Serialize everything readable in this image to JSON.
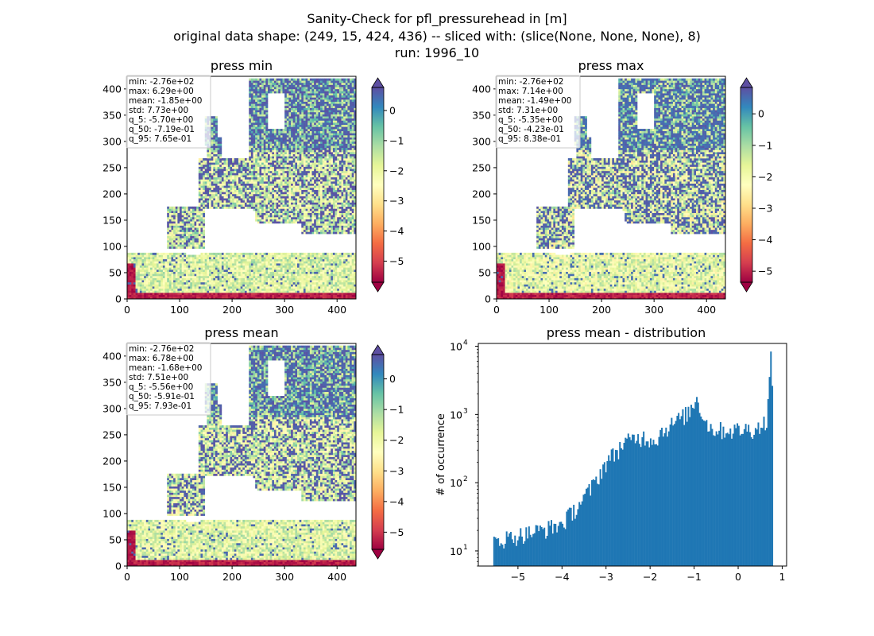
{
  "figure": {
    "title_lines": [
      "Sanity-Check for pfl_pressurehead in [m]",
      "original data shape: (249, 15, 424, 436) -- sliced with: (slice(None, None, None), 8)",
      "run: 1996_10"
    ]
  },
  "colormap": {
    "name": "Spectral",
    "stops": [
      "#9e0142",
      "#d53e4f",
      "#f46d43",
      "#fdae61",
      "#fee08b",
      "#ffffbf",
      "#e6f598",
      "#abdda4",
      "#66c2a5",
      "#3288bd",
      "#5e4fa2"
    ]
  },
  "chart_data": [
    {
      "type": "heatmap",
      "title": "press min",
      "xlim": [
        0,
        436
      ],
      "ylim": [
        0,
        424
      ],
      "xticks": [
        "0",
        "100",
        "200",
        "300",
        "400"
      ],
      "yticks": [
        "0",
        "50",
        "100",
        "150",
        "200",
        "250",
        "300",
        "350",
        "400"
      ],
      "colorbar": {
        "min": -5.7,
        "max": 0.765,
        "ticks": [
          "0",
          "−1",
          "−2",
          "−3",
          "−4",
          "−5"
        ],
        "tick_values": [
          0,
          -1,
          -2,
          -3,
          -4,
          -5
        ]
      },
      "stats": [
        "min: -2.76e+02",
        "max: 6.29e+00",
        "mean: -1.85e+00",
        "std: 7.73e+00",
        "q_5: -5.70e+00",
        "q_50: -7.19e-01",
        "q_95: 7.65e-01"
      ]
    },
    {
      "type": "heatmap",
      "title": "press max",
      "xlim": [
        0,
        436
      ],
      "ylim": [
        0,
        424
      ],
      "xticks": [
        "0",
        "100",
        "200",
        "300",
        "400"
      ],
      "yticks": [
        "0",
        "50",
        "100",
        "150",
        "200",
        "250",
        "300",
        "350",
        "400"
      ],
      "colorbar": {
        "min": -5.35,
        "max": 0.838,
        "ticks": [
          "0",
          "−1",
          "−2",
          "−3",
          "−4",
          "−5"
        ],
        "tick_values": [
          0,
          -1,
          -2,
          -3,
          -4,
          -5
        ]
      },
      "stats": [
        "min: -2.76e+02",
        "max: 7.14e+00",
        "mean: -1.49e+00",
        "std: 7.31e+00",
        "q_5: -5.35e+00",
        "q_50: -4.23e-01",
        "q_95: 8.38e-01"
      ]
    },
    {
      "type": "heatmap",
      "title": "press mean",
      "xlim": [
        0,
        436
      ],
      "ylim": [
        0,
        424
      ],
      "xticks": [
        "0",
        "100",
        "200",
        "300",
        "400"
      ],
      "yticks": [
        "0",
        "50",
        "100",
        "150",
        "200",
        "250",
        "300",
        "350",
        "400"
      ],
      "colorbar": {
        "min": -5.56,
        "max": 0.793,
        "ticks": [
          "0",
          "−1",
          "−2",
          "−3",
          "−4",
          "−5"
        ],
        "tick_values": [
          0,
          -1,
          -2,
          -3,
          -4,
          -5
        ]
      },
      "stats": [
        "min: -2.76e+02",
        "max: 6.78e+00",
        "mean: -1.68e+00",
        "std: 7.51e+00",
        "q_5: -5.56e+00",
        "q_50: -5.91e-01",
        "q_95: 7.93e-01"
      ]
    },
    {
      "type": "bar",
      "title": "press mean - distribution",
      "ylabel": "# of occurrence",
      "yscale": "log",
      "xlim": [
        -5.9,
        1.1
      ],
      "ylim": [
        6,
        11000
      ],
      "xticks": [
        "−5",
        "−4",
        "−3",
        "−2",
        "−1",
        "0",
        "1"
      ],
      "xtick_values": [
        -5,
        -4,
        -3,
        -2,
        -1,
        0,
        1
      ],
      "yticks": [
        "10",
        "10",
        "10",
        "10"
      ],
      "ytick_exps": [
        "1",
        "2",
        "3",
        "4"
      ],
      "ytick_values": [
        10,
        100,
        1000,
        10000
      ],
      "bar_color": "#1f77b4",
      "bin_range": [
        -5.56,
        0.79
      ],
      "profile_x": [
        -5.56,
        -5.0,
        -4.5,
        -4.0,
        -3.6,
        -3.3,
        -3.0,
        -2.6,
        -2.3,
        -2.1,
        -1.9,
        -1.7,
        -1.5,
        -1.3,
        -1.1,
        -0.95,
        -0.85,
        -0.75,
        -0.6,
        -0.4,
        -0.2,
        0.0,
        0.2,
        0.4,
        0.55,
        0.65,
        0.7,
        0.73,
        0.76,
        0.79
      ],
      "profile_y": [
        14,
        17,
        20,
        25,
        50,
        90,
        200,
        380,
        460,
        470,
        420,
        600,
        720,
        900,
        1100,
        1800,
        1200,
        800,
        620,
        600,
        590,
        600,
        610,
        620,
        700,
        900,
        2000,
        8000,
        6000,
        700
      ]
    }
  ]
}
